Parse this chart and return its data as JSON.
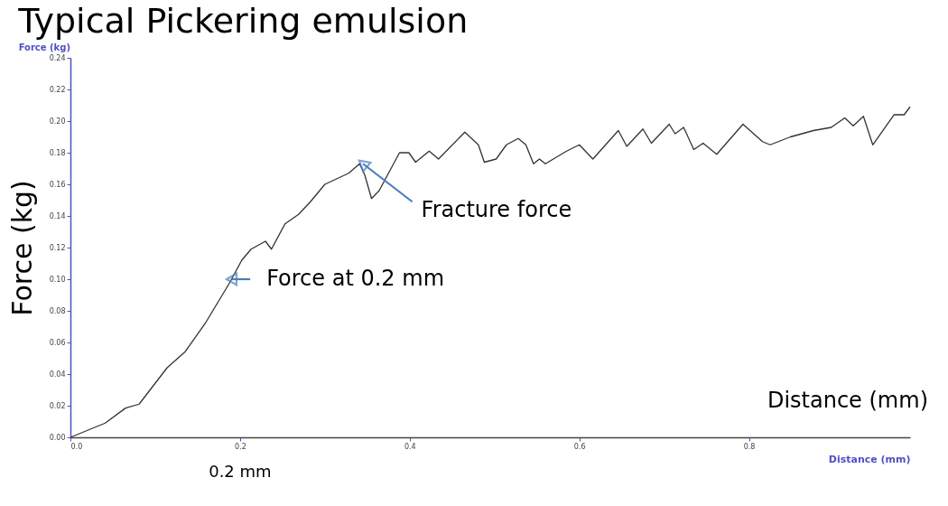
{
  "chart_data": {
    "type": "line",
    "title": "Typical Pickering emulsion",
    "xlabel": "Distance (mm)",
    "ylabel": "Force (kg)",
    "x": [
      0,
      0.041,
      0.065,
      0.081,
      0.114,
      0.135,
      0.16,
      0.188,
      0.202,
      0.213,
      0.23,
      0.237,
      0.253,
      0.269,
      0.283,
      0.3,
      0.328,
      0.341,
      0.347,
      0.355,
      0.364,
      0.388,
      0.399,
      0.407,
      0.423,
      0.434,
      0.465,
      0.481,
      0.488,
      0.502,
      0.514,
      0.528,
      0.537,
      0.546,
      0.553,
      0.56,
      0.585,
      0.6,
      0.616,
      0.646,
      0.656,
      0.675,
      0.685,
      0.706,
      0.713,
      0.723,
      0.735,
      0.746,
      0.762,
      0.793,
      0.816,
      0.825,
      0.849,
      0.876,
      0.897,
      0.913,
      0.923,
      0.935,
      0.946,
      0.971,
      0.983,
      0.99
    ],
    "series": [
      {
        "color": "#333333",
        "values": [
          0,
          0.009,
          0.0185,
          0.021,
          0.044,
          0.054,
          0.073,
          0.098,
          0.112,
          0.119,
          0.124,
          0.119,
          0.135,
          0.141,
          0.149,
          0.16,
          0.167,
          0.173,
          0.166,
          0.151,
          0.156,
          0.18,
          0.18,
          0.174,
          0.181,
          0.176,
          0.193,
          0.185,
          0.174,
          0.176,
          0.185,
          0.189,
          0.185,
          0.173,
          0.176,
          0.173,
          0.181,
          0.185,
          0.176,
          0.194,
          0.184,
          0.195,
          0.186,
          0.198,
          0.192,
          0.196,
          0.182,
          0.186,
          0.179,
          0.198,
          0.187,
          0.185,
          0.19,
          0.194,
          0.196,
          0.202,
          0.197,
          0.203,
          0.185,
          0.204,
          0.204,
          0.209
        ]
      }
    ],
    "xlim": [
      0,
      0.99
    ],
    "xticks": [
      {
        "value": 0,
        "label": "0.0"
      },
      0.2,
      0.4,
      0.6,
      0.8
    ],
    "ylim": [
      0,
      0.24
    ],
    "yticks": [
      {
        "value": 0,
        "label": "0.00"
      },
      0.02,
      0.04,
      0.06,
      0.08,
      {
        "value": 0.1,
        "label": "0.10"
      },
      0.12,
      0.14,
      0.16,
      0.18,
      {
        "value": 0.2,
        "label": "0.20"
      },
      0.22,
      0.24
    ],
    "grid": false,
    "legend": false,
    "marker": "none",
    "line_style": "solid",
    "annotations": [
      "Force (kg)",
      "Distance (mm)",
      {
        "text": "Force at 0.2 mm",
        "x": 0.19,
        "y": 0.1
      },
      {
        "text": "Fracture force",
        "x": 0.345,
        "y": 0.173
      },
      "0.2 mm"
    ]
  }
}
